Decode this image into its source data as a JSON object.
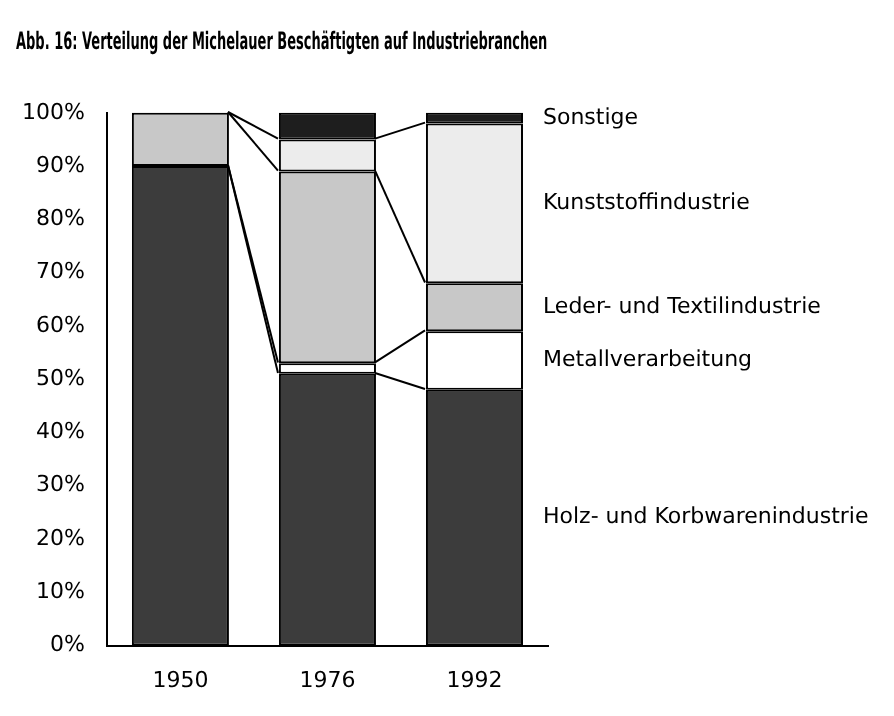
{
  "chart_data": {
    "type": "bar",
    "title": "Abb. 16: Verteilung der Michelauer Beschäftigten auf Industriebranchen",
    "categories": [
      "1950",
      "1976",
      "1992"
    ],
    "stacked": true,
    "legend": false,
    "grid": false,
    "ylim": [
      0,
      100
    ],
    "yticks": [
      {
        "value": 0,
        "label": "0%"
      },
      {
        "value": 10,
        "label": "10%"
      },
      {
        "value": 20,
        "label": "20%"
      },
      {
        "value": 30,
        "label": "30%"
      },
      {
        "value": 40,
        "label": "40%"
      },
      {
        "value": 50,
        "label": "50%"
      },
      {
        "value": 60,
        "label": "60%"
      },
      {
        "value": 70,
        "label": "70%"
      },
      {
        "value": 80,
        "label": "80%"
      },
      {
        "value": 90,
        "label": "90%"
      },
      {
        "value": 100,
        "label": "100%"
      }
    ],
    "series": [
      {
        "name": "Holz- und Korbwarenindustrie",
        "color": "#3c3c3c",
        "values": [
          90,
          51,
          48
        ]
      },
      {
        "name": "Metallverarbeitung",
        "color": "#ffffff",
        "values": [
          0,
          2,
          11
        ]
      },
      {
        "name": "Leder- und Textilindustrie",
        "color": "#c8c8c8",
        "values": [
          10,
          36,
          9
        ]
      },
      {
        "name": "Kunststoffindustrie",
        "color": "#ececec",
        "values": [
          0,
          6,
          30
        ]
      },
      {
        "name": "Sonstige",
        "color": "#1e1e1e",
        "values": [
          0,
          5,
          2
        ]
      }
    ]
  }
}
